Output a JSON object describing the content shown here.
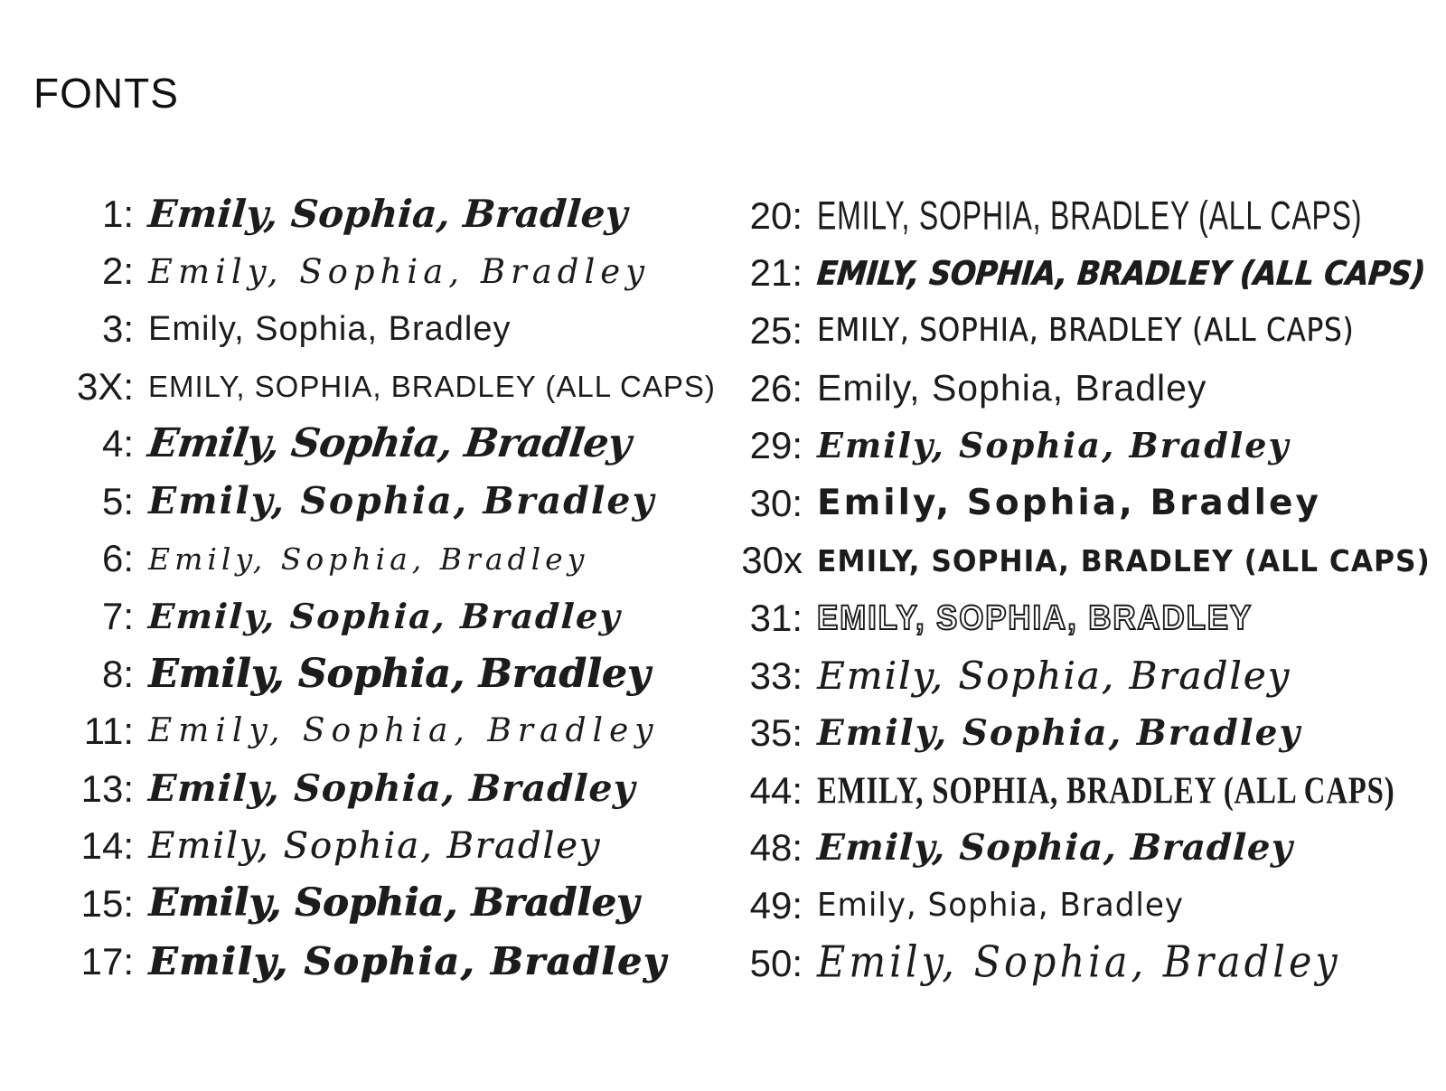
{
  "page": {
    "title": "FONTS",
    "background_color": "#ffffff",
    "text_color": "#1c1c1c",
    "sample_text": "Emily, Sophia, Bradley",
    "sample_text_caps": "EMILY, SOPHIA, BRADLEY (ALL CAPS)"
  },
  "columns": [
    {
      "items": [
        {
          "id": "1",
          "label": "1:",
          "text": "Emily, Sophia, Bradley",
          "font_style": "script-heavy"
        },
        {
          "id": "2",
          "label": "2:",
          "text": "Emily, Sophia, Bradley",
          "font_style": "script-elegant-thin"
        },
        {
          "id": "3",
          "label": "3:",
          "text": "Emily, Sophia, Bradley",
          "font_style": "geometric-sans"
        },
        {
          "id": "3X",
          "label": "3X:",
          "text": "EMILY, SOPHIA, BRADLEY (ALL CAPS)",
          "font_style": "geometric-sans-caps"
        },
        {
          "id": "4",
          "label": "4:",
          "text": "Emily, Sophia, Bradley",
          "font_style": "brush-bold"
        },
        {
          "id": "5",
          "label": "5:",
          "text": "Emily, Sophia, Bradley",
          "font_style": "script-bold-round"
        },
        {
          "id": "6",
          "label": "6:",
          "text": "Emily, Sophia, Bradley",
          "font_style": "script-thin-casual"
        },
        {
          "id": "7",
          "label": "7:",
          "text": "Emily, Sophia, Bradley",
          "font_style": "script-medium"
        },
        {
          "id": "8",
          "label": "8:",
          "text": "Emily, Sophia, Bradley",
          "font_style": "script-extra-bold"
        },
        {
          "id": "11",
          "label": "11:",
          "text": "Emily, Sophia, Bradley",
          "font_style": "script-airy-thin"
        },
        {
          "id": "13",
          "label": "13:",
          "text": "Emily, Sophia, Bradley",
          "font_style": "script-bold-casual"
        },
        {
          "id": "14",
          "label": "14:",
          "text": "Emily, Sophia, Bradley",
          "font_style": "script-rounded"
        },
        {
          "id": "15",
          "label": "15:",
          "text": "Emily, Sophia, Bradley",
          "font_style": "script-chunky"
        },
        {
          "id": "17",
          "label": "17:",
          "text": "Emily, Sophia, Bradley",
          "font_style": "script-fat"
        }
      ]
    },
    {
      "items": [
        {
          "id": "20",
          "label": "20:",
          "text": "EMILY, SOPHIA, BRADLEY (ALL CAPS)",
          "font_style": "caps-tall-hand"
        },
        {
          "id": "21",
          "label": "21:",
          "text": "EMILY, SOPHIA, BRADLEY (ALL CAPS)",
          "font_style": "caps-heavy-italic"
        },
        {
          "id": "25",
          "label": "25:",
          "text": "EMILY, SOPHIA, BRADLEY (ALL CAPS)",
          "font_style": "caps-rounded-hand"
        },
        {
          "id": "26",
          "label": "26:",
          "text": "Emily, Sophia, Bradley",
          "font_style": "rounded-sans-hand"
        },
        {
          "id": "29",
          "label": "29:",
          "text": "Emily, Sophia, Bradley",
          "font_style": "script-retro"
        },
        {
          "id": "30",
          "label": "30:",
          "text": "Emily, Sophia, Bradley",
          "font_style": "bubbly-bold"
        },
        {
          "id": "30x",
          "label": "30x",
          "text": "EMILY, SOPHIA, BRADLEY (ALL CAPS)",
          "font_style": "bubbly-bold-caps"
        },
        {
          "id": "31",
          "label": "31:",
          "text": "EMILY, SOPHIA, BRADLEY",
          "font_style": "caps-outline"
        },
        {
          "id": "33",
          "label": "33:",
          "text": "Emily, Sophia, Bradley",
          "font_style": "script-flowing"
        },
        {
          "id": "35",
          "label": "35:",
          "text": "Emily, Sophia, Bradley",
          "font_style": "script-ornate-bold"
        },
        {
          "id": "44",
          "label": "44:",
          "text": "EMILY, SOPHIA, BRADLEY (ALL CAPS)",
          "font_style": "caps-condensed-serif"
        },
        {
          "id": "48",
          "label": "48:",
          "text": "Emily, Sophia, Bradley",
          "font_style": "script-perky"
        },
        {
          "id": "49",
          "label": "49:",
          "text": "Emily, Sophia, Bradley",
          "font_style": "hand-print"
        },
        {
          "id": "50",
          "label": "50:",
          "text": "Emily, Sophia, Bradley",
          "font_style": "script-tall-thin"
        }
      ]
    }
  ]
}
